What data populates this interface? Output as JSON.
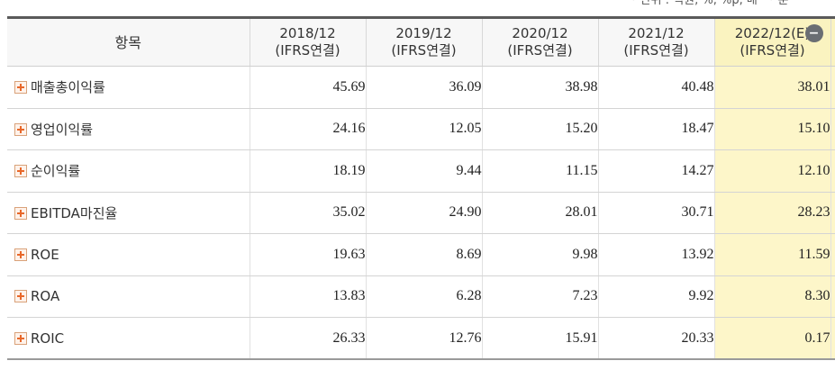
{
  "unit_note": {
    "unit": "* 단위 : 억원, %, %p, 배",
    "other": "* 분"
  },
  "table": {
    "item_header": "항목",
    "columns": [
      {
        "period": "2018/12",
        "basis": "(IFRS연결)"
      },
      {
        "period": "2019/12",
        "basis": "(IFRS연결)"
      },
      {
        "period": "2020/12",
        "basis": "(IFRS연결)"
      },
      {
        "period": "2021/12",
        "basis": "(IFRS연결)"
      },
      {
        "period": "2022/12(E)",
        "basis": "(IFRS연결)"
      }
    ],
    "collapse_icon": "minus-circle-icon",
    "rows": [
      {
        "label": "매출총이익률",
        "values": [
          "45.69",
          "36.09",
          "38.98",
          "40.48",
          "38.01"
        ]
      },
      {
        "label": "영업이익률",
        "values": [
          "24.16",
          "12.05",
          "15.20",
          "18.47",
          "15.10"
        ]
      },
      {
        "label": "순이익률",
        "values": [
          "18.19",
          "9.44",
          "11.15",
          "14.27",
          "12.10"
        ]
      },
      {
        "label": "EBITDA마진율",
        "values": [
          "35.02",
          "24.90",
          "28.01",
          "30.71",
          "28.23"
        ]
      },
      {
        "label": "ROE",
        "values": [
          "19.63",
          "8.69",
          "9.98",
          "13.92",
          "11.59"
        ]
      },
      {
        "label": "ROA",
        "values": [
          "13.83",
          "6.28",
          "7.23",
          "9.92",
          "8.30"
        ]
      },
      {
        "label": "ROIC",
        "values": [
          "26.33",
          "12.76",
          "15.91",
          "20.33",
          "0.17"
        ]
      }
    ],
    "expand_icon": "plus-square-icon"
  },
  "colors": {
    "estimate_highlight": "#fdf6c9",
    "header_bg": "#f7f7f7",
    "expand_icon": "#e8682a"
  }
}
